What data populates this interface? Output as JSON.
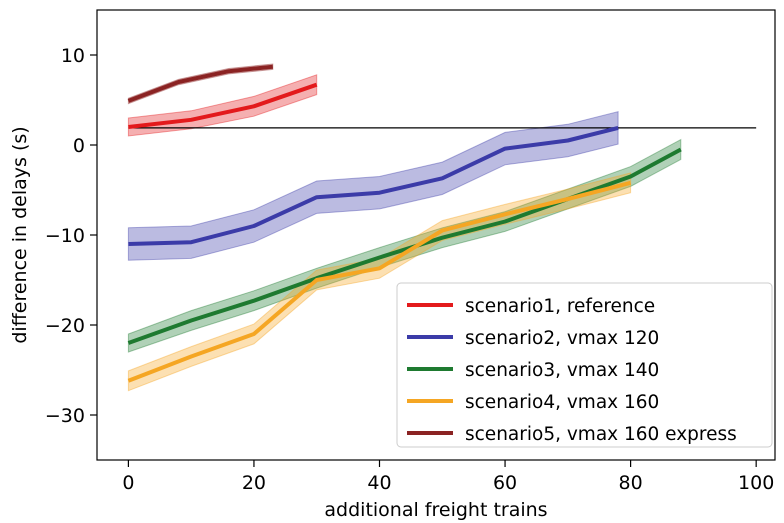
{
  "chart_data": {
    "type": "line",
    "xlabel": "additional freight trains",
    "ylabel": "difference in delays (s)",
    "xlim": [
      -5,
      103
    ],
    "ylim": [
      -35,
      15
    ],
    "x_ticks": [
      0,
      20,
      40,
      60,
      80,
      100
    ],
    "y_ticks": [
      10,
      0,
      -10,
      -20,
      -30
    ],
    "grid": false,
    "legend_position": "lower-right",
    "reference_line": {
      "x": [
        0,
        100
      ],
      "y": [
        1.9,
        1.9
      ],
      "color": "#000000"
    },
    "series": [
      {
        "name": "scenario1, reference",
        "color": "#e31a1c",
        "x": [
          0,
          10,
          20,
          30
        ],
        "y": [
          2.0,
          2.8,
          4.3,
          6.7
        ],
        "lower": [
          1.0,
          1.8,
          3.2,
          5.6
        ],
        "upper": [
          3.0,
          3.8,
          5.4,
          7.8
        ]
      },
      {
        "name": "scenario2, vmax 120",
        "color": "#3b3ba8",
        "x": [
          0,
          10,
          20,
          30,
          40,
          50,
          60,
          70,
          78
        ],
        "y": [
          -11.0,
          -10.8,
          -9.0,
          -5.8,
          -5.3,
          -3.7,
          -0.4,
          0.5,
          1.9
        ],
        "lower": [
          -12.8,
          -12.6,
          -10.8,
          -7.6,
          -7.1,
          -5.5,
          -2.2,
          -1.3,
          0.1
        ],
        "upper": [
          -9.2,
          -9.0,
          -7.2,
          -4.0,
          -3.5,
          -1.9,
          1.4,
          2.3,
          3.7
        ]
      },
      {
        "name": "scenario3, vmax 140",
        "color": "#1e7a30",
        "x": [
          0,
          10,
          20,
          30,
          40,
          50,
          60,
          70,
          80,
          88
        ],
        "y": [
          -22.0,
          -19.5,
          -17.3,
          -14.8,
          -12.5,
          -10.3,
          -8.5,
          -6.0,
          -3.5,
          -0.5
        ],
        "lower": [
          -23.0,
          -20.6,
          -18.4,
          -15.9,
          -13.6,
          -11.4,
          -9.6,
          -7.1,
          -4.6,
          -1.6
        ],
        "upper": [
          -21.0,
          -18.4,
          -16.2,
          -13.7,
          -11.4,
          -9.2,
          -7.4,
          -4.9,
          -2.4,
          0.6
        ]
      },
      {
        "name": "scenario4, vmax 160",
        "color": "#f5a623",
        "x": [
          0,
          10,
          20,
          30,
          40,
          50,
          60,
          70,
          80
        ],
        "y": [
          -26.2,
          -23.5,
          -21.0,
          -15.0,
          -13.7,
          -9.5,
          -7.7,
          -6.0,
          -4.2
        ],
        "lower": [
          -27.3,
          -24.6,
          -22.1,
          -16.1,
          -14.8,
          -10.6,
          -8.8,
          -7.1,
          -5.3
        ],
        "upper": [
          -25.1,
          -22.4,
          -19.9,
          -13.9,
          -12.6,
          -8.4,
          -6.6,
          -4.9,
          -3.1
        ]
      },
      {
        "name": "scenario5, vmax 160 express",
        "color": "#8b2323",
        "x": [
          0,
          8,
          16,
          23
        ],
        "y": [
          4.9,
          7.0,
          8.2,
          8.7
        ],
        "lower": [
          4.6,
          6.7,
          7.9,
          8.4
        ],
        "upper": [
          5.2,
          7.3,
          8.5,
          9.0
        ]
      }
    ]
  }
}
